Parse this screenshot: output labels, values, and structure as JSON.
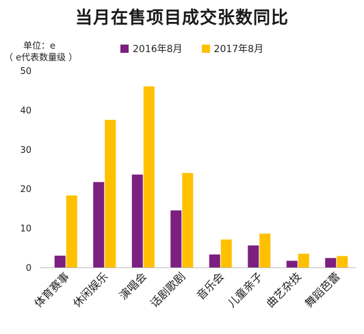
{
  "title": "当月在售项目成交张数同比",
  "unit": {
    "line1": "单位：e",
    "line2": "（ e代表数量级 ）"
  },
  "colors": {
    "series1": "#7b1f80",
    "series2": "#ffc000",
    "axis": "#bfbfbf"
  },
  "chart_data": {
    "type": "bar",
    "title": "当月在售项目成交张数同比",
    "categories": [
      "体育赛事",
      "休闲娱乐",
      "演唱会",
      "话剧歌剧",
      "音乐会",
      "儿童亲子",
      "曲艺杂技",
      "舞蹈芭蕾"
    ],
    "series": [
      {
        "name": "2016年8月",
        "values": [
          3.0,
          21.7,
          23.6,
          14.5,
          3.3,
          5.6,
          1.7,
          2.4
        ]
      },
      {
        "name": "2017年8月",
        "values": [
          18.3,
          37.5,
          46.0,
          24.0,
          7.1,
          8.6,
          3.5,
          2.9
        ]
      }
    ],
    "yticks": [
      0,
      10,
      20,
      30,
      40,
      50
    ],
    "ylim": [
      0,
      50
    ],
    "grid": false,
    "legend": "top-center"
  }
}
